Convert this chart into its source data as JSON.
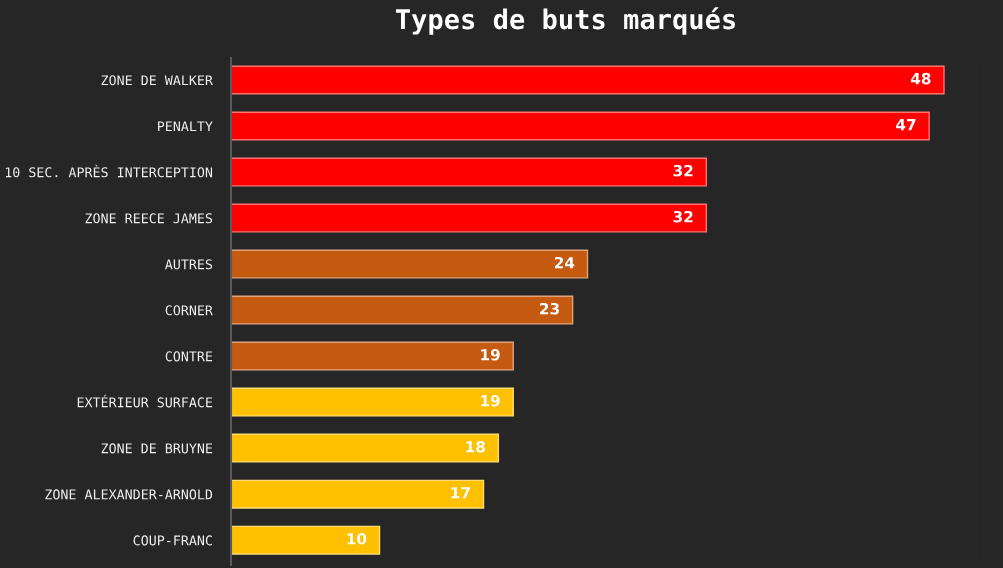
{
  "chart_data": {
    "type": "bar",
    "orientation": "horizontal",
    "title": "Types de buts marqués",
    "categories": [
      "ZONE DE WALKER",
      "PENALTY",
      "10 SEC. APRÈS INTERCEPTION",
      "ZONE REECE JAMES",
      "AUTRES",
      "CORNER",
      "CONTRE",
      "EXTÉRIEUR SURFACE",
      "ZONE DE BRUYNE",
      "ZONE ALEXANDER-ARNOLD",
      "COUP-FRANC"
    ],
    "values": [
      48,
      47,
      32,
      32,
      24,
      23,
      19,
      19,
      18,
      17,
      10
    ],
    "colors": [
      "#ff0000",
      "#ff0000",
      "#ff0000",
      "#ff0000",
      "#c55a11",
      "#c55a11",
      "#c55a11",
      "#ffc000",
      "#ffc000",
      "#ffc000",
      "#ffc000"
    ],
    "data_labels": true,
    "tick_labels": "y",
    "grid": false,
    "legend": false
  }
}
